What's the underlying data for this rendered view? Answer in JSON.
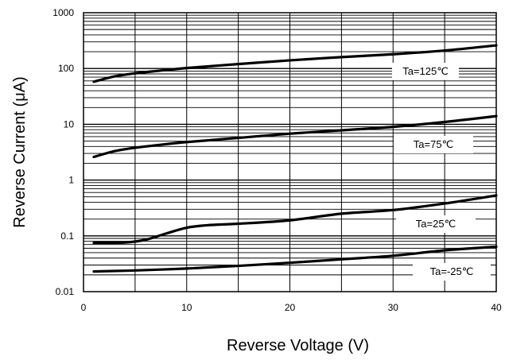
{
  "chart_data": {
    "type": "line",
    "title": "",
    "xlabel": "Reverse Voltage (V)",
    "ylabel": "Reverse Current (μA)",
    "x_scale": "linear",
    "y_scale": "log",
    "xlim": [
      0,
      40
    ],
    "ylim": [
      0.01,
      1000
    ],
    "x_ticks": [
      0,
      10,
      20,
      30,
      40
    ],
    "x_tick_labels": [
      "0",
      "10",
      "20",
      "30",
      "40"
    ],
    "y_ticks": [
      0.01,
      0.1,
      1,
      10,
      100,
      1000
    ],
    "y_tick_labels": [
      "0.01",
      "0.1",
      "1",
      "10",
      "100",
      "1000"
    ],
    "grid": true,
    "legend": "none",
    "series": [
      {
        "name": "Ta=125℃",
        "x": [
          1,
          3,
          5,
          7,
          10,
          15,
          20,
          25,
          30,
          35,
          40
        ],
        "y": [
          58,
          72,
          82,
          90,
          102,
          120,
          140,
          160,
          180,
          210,
          260
        ]
      },
      {
        "name": "Ta=75℃",
        "x": [
          1,
          3,
          5,
          7,
          10,
          15,
          20,
          25,
          30,
          35,
          40
        ],
        "y": [
          2.6,
          3.3,
          3.8,
          4.2,
          4.8,
          5.7,
          6.8,
          7.8,
          9.0,
          11,
          14
        ]
      },
      {
        "name": "Ta=25℃",
        "x": [
          1,
          4,
          6,
          8,
          10,
          12,
          15,
          20,
          25,
          30,
          35,
          40
        ],
        "y": [
          0.075,
          0.076,
          0.085,
          0.11,
          0.14,
          0.155,
          0.165,
          0.19,
          0.25,
          0.29,
          0.38,
          0.53
        ]
      },
      {
        "name": "Ta=-25℃",
        "x": [
          1,
          5,
          10,
          15,
          20,
          25,
          30,
          35,
          40
        ],
        "y": [
          0.023,
          0.024,
          0.026,
          0.029,
          0.033,
          0.038,
          0.044,
          0.055,
          0.064
        ]
      }
    ],
    "annotations": [
      {
        "text": "Ta=125℃",
        "series": 0
      },
      {
        "text": "Ta=75℃",
        "series": 1
      },
      {
        "text": "Ta=25℃",
        "series": 2
      },
      {
        "text": "Ta=-25℃",
        "series": 3
      }
    ]
  }
}
